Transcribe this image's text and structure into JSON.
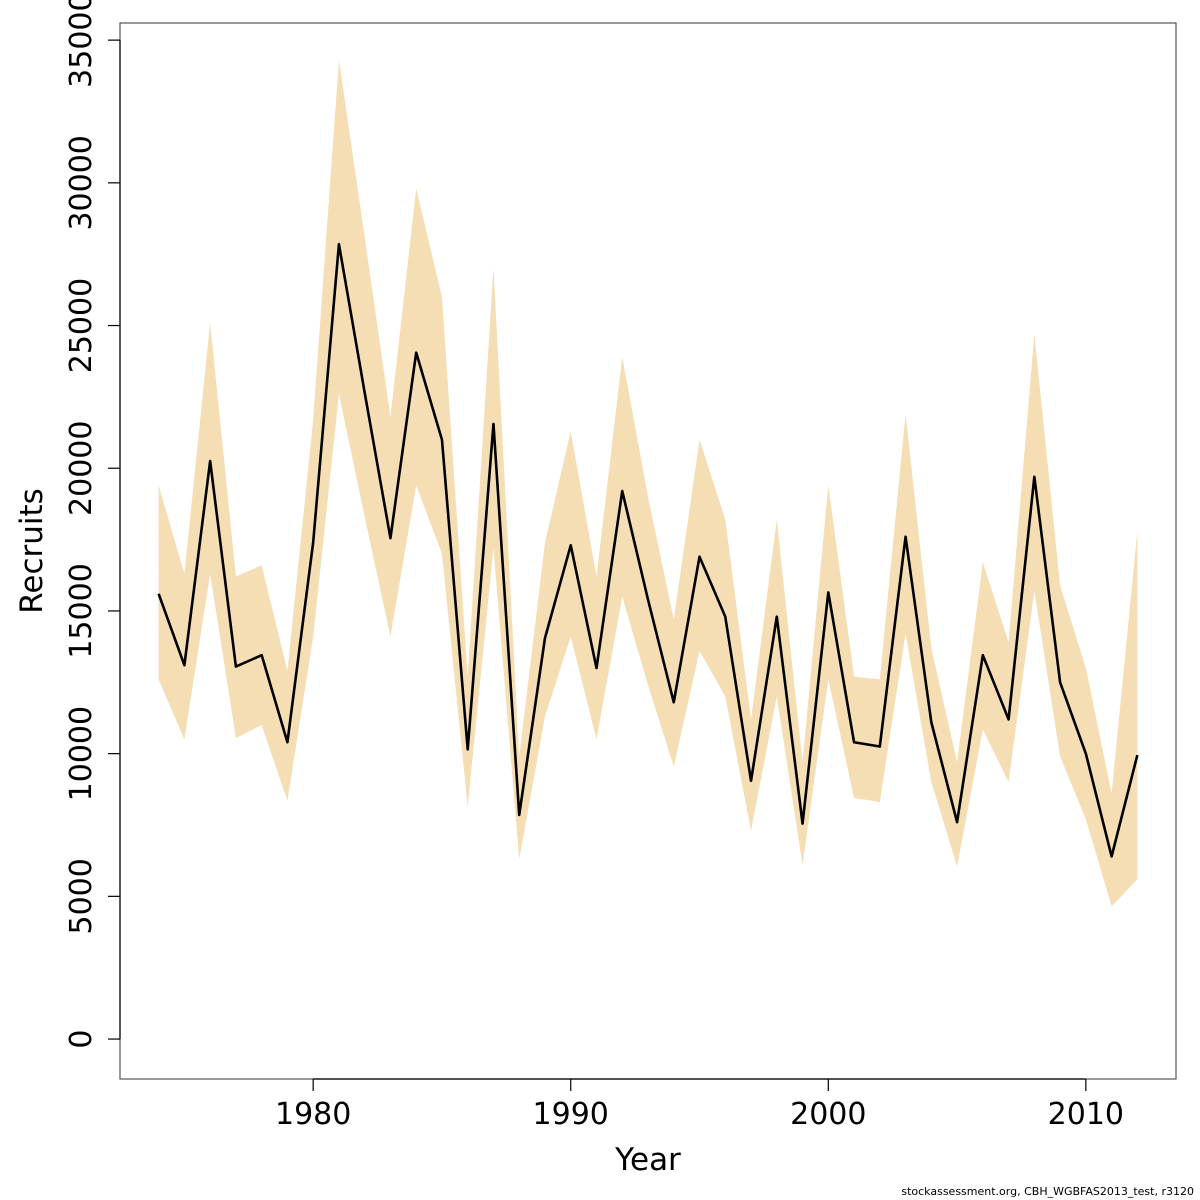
{
  "chart_data": {
    "type": "line",
    "xlabel": "Year",
    "ylabel": "Recruits",
    "xlim": [
      1972.5,
      2013.5
    ],
    "ylim": [
      -1400,
      35600
    ],
    "x_ticks": [
      1980,
      1990,
      2000,
      2010
    ],
    "x_tick_labels": [
      "1980",
      "1990",
      "2000",
      "2010"
    ],
    "y_ticks": [
      0,
      5000,
      10000,
      15000,
      20000,
      25000,
      30000,
      35000
    ],
    "y_tick_labels": [
      "0",
      "5000",
      "10000",
      "15000",
      "20000",
      "25000",
      "30000",
      "35000"
    ],
    "grid": false,
    "colors": {
      "line": "#000000",
      "band": "#f5deb3"
    },
    "years": [
      1974,
      1975,
      1976,
      1977,
      1978,
      1979,
      1980,
      1981,
      1982,
      1983,
      1984,
      1985,
      1986,
      1987,
      1988,
      1989,
      1990,
      1991,
      1992,
      1993,
      1994,
      1995,
      1996,
      1997,
      1998,
      1999,
      2000,
      2001,
      2002,
      2003,
      2004,
      2005,
      2006,
      2007,
      2008,
      2009,
      2010,
      2011,
      2012
    ],
    "series": [
      {
        "name": "Recruits",
        "values": [
          15600,
          13100,
          20250,
          13050,
          13450,
          10400,
          17400,
          27850,
          22650,
          17550,
          24050,
          21000,
          10150,
          21550,
          7850,
          14050,
          17300,
          13000,
          19200,
          15400,
          11800,
          16900,
          14800,
          9050,
          14800,
          7550,
          15650,
          10400,
          10250,
          17600,
          11100,
          7600,
          13450,
          11200,
          19700,
          12500,
          10000,
          6400,
          9950
        ]
      },
      {
        "name": "upper",
        "values": [
          19400,
          16300,
          25100,
          16200,
          16600,
          12900,
          21700,
          34300,
          28100,
          21800,
          29800,
          26000,
          12700,
          27000,
          9900,
          17400,
          21300,
          16200,
          23900,
          19000,
          14700,
          21000,
          18200,
          11200,
          18200,
          9700,
          19400,
          12700,
          12600,
          21900,
          13700,
          9700,
          16700,
          13900,
          24700,
          15900,
          13000,
          8600,
          17800
        ]
      },
      {
        "name": "lower",
        "values": [
          12600,
          10500,
          16300,
          10550,
          11000,
          8350,
          14100,
          22600,
          18300,
          14100,
          19400,
          17000,
          8150,
          17200,
          6300,
          11300,
          14100,
          10500,
          15500,
          12400,
          9550,
          13600,
          12000,
          7300,
          12000,
          6100,
          12600,
          8450,
          8300,
          14200,
          9000,
          6050,
          10850,
          9000,
          15700,
          9900,
          7700,
          4650,
          5600
        ]
      }
    ]
  },
  "footer": {
    "note": "stockassessment.org, CBH_WGBFAS2013_test, r3120"
  }
}
